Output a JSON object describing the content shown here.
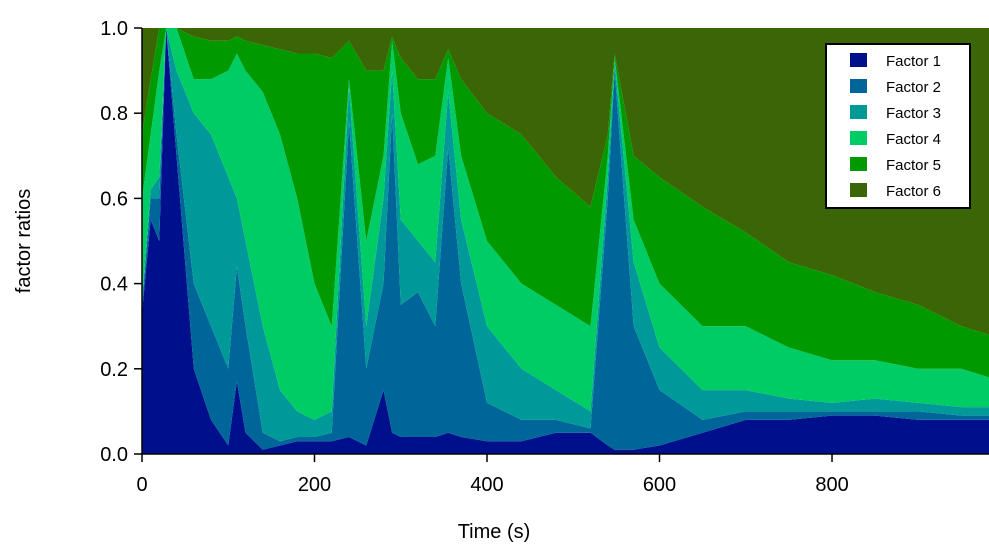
{
  "chart_data": {
    "type": "stacked_area",
    "x_label": "Time (s)",
    "y_label": "factor ratios",
    "xlim": [
      0,
      982
    ],
    "ylim": [
      0,
      1
    ],
    "xticks": [
      0,
      200,
      400,
      600,
      800
    ],
    "yticks": [
      {
        "value": 0,
        "label": "0.0"
      },
      0.2,
      0.4,
      0.6,
      0.8,
      {
        "value": 1,
        "label": "1.0"
      }
    ],
    "legend": "upper right",
    "x": [
      0,
      10,
      20,
      28,
      40,
      60,
      80,
      100,
      110,
      120,
      140,
      160,
      180,
      200,
      220,
      240,
      260,
      280,
      290,
      300,
      320,
      340,
      355,
      370,
      400,
      440,
      480,
      520,
      540,
      548,
      570,
      600,
      650,
      700,
      750,
      800,
      850,
      900,
      950,
      982
    ],
    "series": [
      {
        "name": "Factor 1",
        "color": "#000f8c",
        "values": [
          0.33,
          0.55,
          0.5,
          1,
          0.7,
          0.2,
          0.08,
          0.02,
          0.17,
          0.05,
          0.01,
          0.02,
          0.03,
          0.03,
          0.03,
          0.04,
          0.02,
          0.15,
          0.05,
          0.04,
          0.04,
          0.04,
          0.05,
          0.04,
          0.03,
          0.03,
          0.05,
          0.05,
          0.02,
          0.01,
          0.01,
          0.02,
          0.05,
          0.08,
          0.08,
          0.09,
          0.09,
          0.08,
          0.08,
          0.08
        ]
      },
      {
        "name": "Factor 2",
        "color": "#006699",
        "values": [
          0.02,
          0.05,
          0.1,
          0,
          0.05,
          0.2,
          0.22,
          0.18,
          0.27,
          0.25,
          0.04,
          0.01,
          0.01,
          0.01,
          0.02,
          0.74,
          0.18,
          0.25,
          0.75,
          0.31,
          0.34,
          0.26,
          0.67,
          0.36,
          0.09,
          0.05,
          0.03,
          0.01,
          0.58,
          0.89,
          0.29,
          0.13,
          0.03,
          0.02,
          0.02,
          0.01,
          0.01,
          0.02,
          0.01,
          0.01
        ]
      },
      {
        "name": "Factor 3",
        "color": "#009999",
        "values": [
          0.01,
          0.02,
          0.05,
          0,
          0.15,
          0.4,
          0.45,
          0.45,
          0.16,
          0.2,
          0.25,
          0.12,
          0.06,
          0.04,
          0.05,
          0.08,
          0.1,
          0.2,
          0.1,
          0.2,
          0.12,
          0.15,
          0.13,
          0.15,
          0.18,
          0.12,
          0.07,
          0.04,
          0.05,
          0.02,
          0.15,
          0.1,
          0.07,
          0.05,
          0.03,
          0.02,
          0.03,
          0.02,
          0.02,
          0.02
        ]
      },
      {
        "name": "Factor 4",
        "color": "#00cc66",
        "values": [
          0.24,
          0.13,
          0.25,
          0,
          0.1,
          0.08,
          0.13,
          0.25,
          0.34,
          0.4,
          0.55,
          0.6,
          0.5,
          0.32,
          0.2,
          0.02,
          0.2,
          0.1,
          0.07,
          0.25,
          0.18,
          0.25,
          0.08,
          0.15,
          0.2,
          0.2,
          0.2,
          0.2,
          0.05,
          0.01,
          0.1,
          0.15,
          0.15,
          0.15,
          0.12,
          0.1,
          0.09,
          0.08,
          0.09,
          0.07
        ]
      },
      {
        "name": "Factor 5",
        "color": "#009900",
        "values": [
          0.15,
          0.13,
          0.1,
          0,
          0,
          0.1,
          0.09,
          0.07,
          0.04,
          0.07,
          0.11,
          0.2,
          0.34,
          0.54,
          0.63,
          0.09,
          0.4,
          0.2,
          0.01,
          0.13,
          0.2,
          0.18,
          0.02,
          0.18,
          0.3,
          0.35,
          0.3,
          0.28,
          0.05,
          0.01,
          0.15,
          0.25,
          0.28,
          0.22,
          0.2,
          0.2,
          0.16,
          0.15,
          0.1,
          0.1
        ]
      },
      {
        "name": "Factor 6",
        "color": "#3a6605",
        "values": [
          0.25,
          0.12,
          0,
          0,
          0,
          0.02,
          0.03,
          0.03,
          0.02,
          0.03,
          0.04,
          0.05,
          0.06,
          0.06,
          0.07,
          0.03,
          0.1,
          0.1,
          0.02,
          0.07,
          0.12,
          0.12,
          0.05,
          0.12,
          0.2,
          0.25,
          0.35,
          0.42,
          0.25,
          0.06,
          0.3,
          0.35,
          0.42,
          0.48,
          0.55,
          0.58,
          0.62,
          0.65,
          0.7,
          0.72
        ]
      }
    ]
  }
}
